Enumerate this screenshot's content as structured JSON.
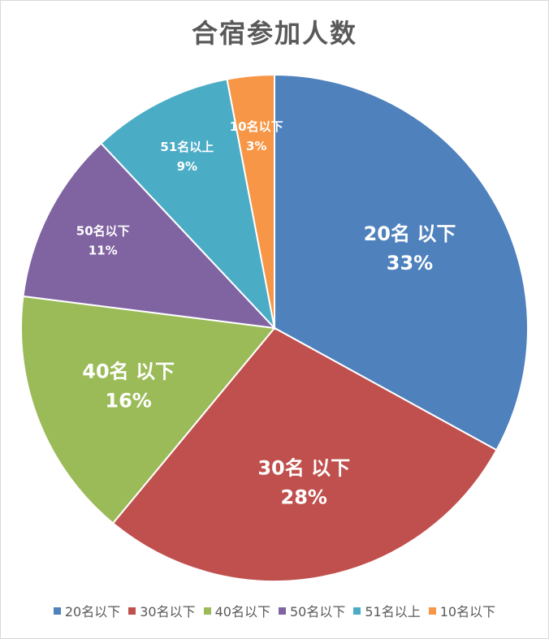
{
  "chart_data": {
    "type": "pie",
    "title": "合宿参加人数",
    "categories": [
      "20名以下",
      "30名以下",
      "40名以下",
      "50名以下",
      "51名以上",
      "10名以下"
    ],
    "label_names": [
      "20名 以下",
      "30名 以下",
      "40名 以下",
      "50名以下",
      "51名以上",
      "10名以下"
    ],
    "values": [
      33,
      28,
      16,
      11,
      9,
      3
    ],
    "value_labels": [
      "33%",
      "28%",
      "16%",
      "11%",
      "9%",
      "3%"
    ],
    "colors": [
      "#4f81bd",
      "#c0504d",
      "#9bbb59",
      "#8064a2",
      "#4bacc6",
      "#f79646"
    ],
    "start_angle_deg": 0,
    "direction": "clockwise",
    "legend_position": "bottom"
  }
}
